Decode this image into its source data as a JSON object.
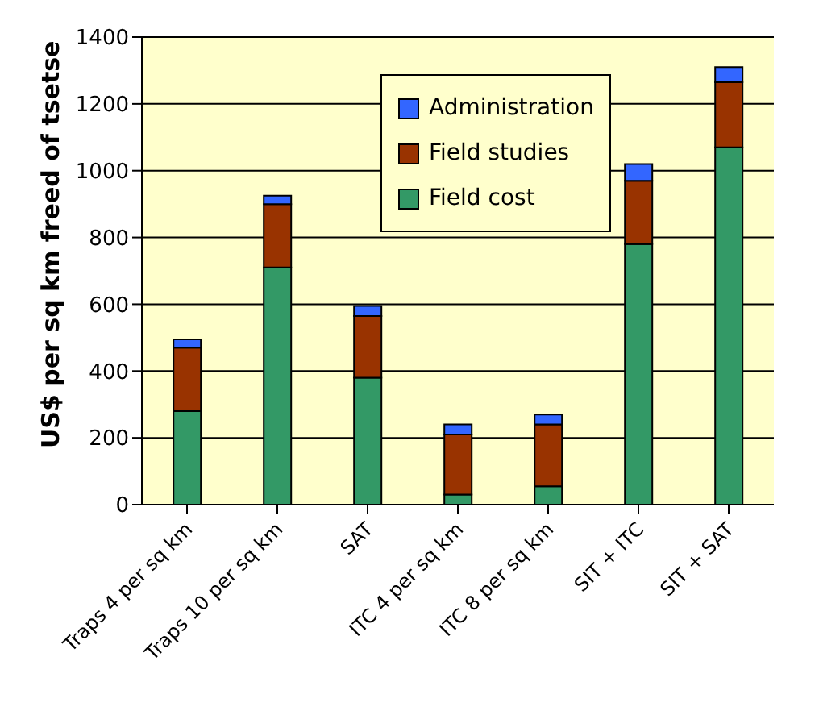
{
  "chart_data": {
    "type": "bar",
    "stacked": true,
    "ylabel": "US$ per sq km freed of tsetse",
    "categories": [
      "Traps 4 per sq km",
      "Traps 10 per sq km",
      "SAT",
      "ITC 4 per sq km",
      "ITC 8 per sq km",
      "SIT + ITC",
      "SIT + SAT"
    ],
    "series": [
      {
        "name": "Field cost",
        "color": "#339966",
        "values": [
          280,
          710,
          380,
          30,
          55,
          780,
          1070
        ]
      },
      {
        "name": "Field studies",
        "color": "#993300",
        "values": [
          190,
          190,
          185,
          180,
          185,
          190,
          195
        ]
      },
      {
        "name": "Administration",
        "color": "#3366ff",
        "values": [
          25,
          25,
          30,
          30,
          30,
          50,
          45
        ]
      }
    ],
    "ylim": [
      0,
      1400
    ],
    "yticks": [
      0,
      200,
      400,
      600,
      800,
      1000,
      1200,
      1400
    ],
    "grid": "y",
    "legend": "top right"
  }
}
